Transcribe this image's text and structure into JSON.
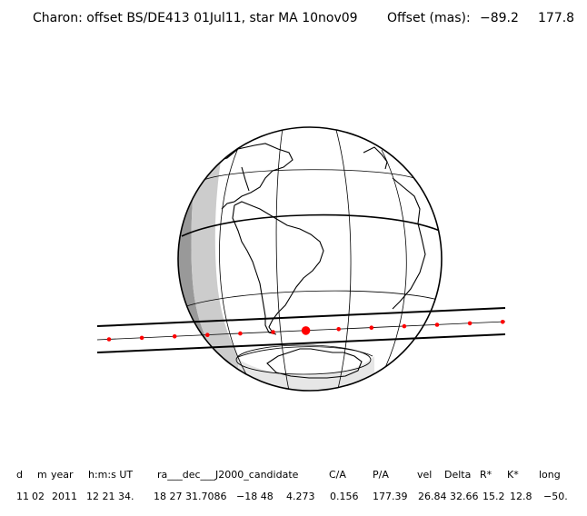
{
  "header": {
    "description": "Charon: offset BS/DE413 01Jul11, star MA 10nov09",
    "offset_label": "Offset (mas):",
    "offset_x": "−89.2",
    "offset_y": "177.8"
  },
  "table": {
    "columns": [
      "d",
      "m",
      "year",
      "h:m:s UT",
      "ra___dec___J2000_candidate",
      "C/A",
      "P/A",
      "vel",
      "Delta",
      "R*",
      "K*",
      "long"
    ],
    "values": [
      "11",
      "02",
      "2011",
      "12 21 34.",
      "18 27 31.7086",
      "−18 48",
      "4.273",
      "0.156",
      "177.39",
      "26.84",
      "32.66",
      "15.2",
      "12.8",
      "−50."
    ]
  },
  "colors": {
    "ink": "#000000",
    "chord_points": "#ff0000",
    "shade_dark": "#999999",
    "shade_light": "#cccccc"
  },
  "chord_points": {
    "count": 13,
    "closest_approach_index": 6
  }
}
